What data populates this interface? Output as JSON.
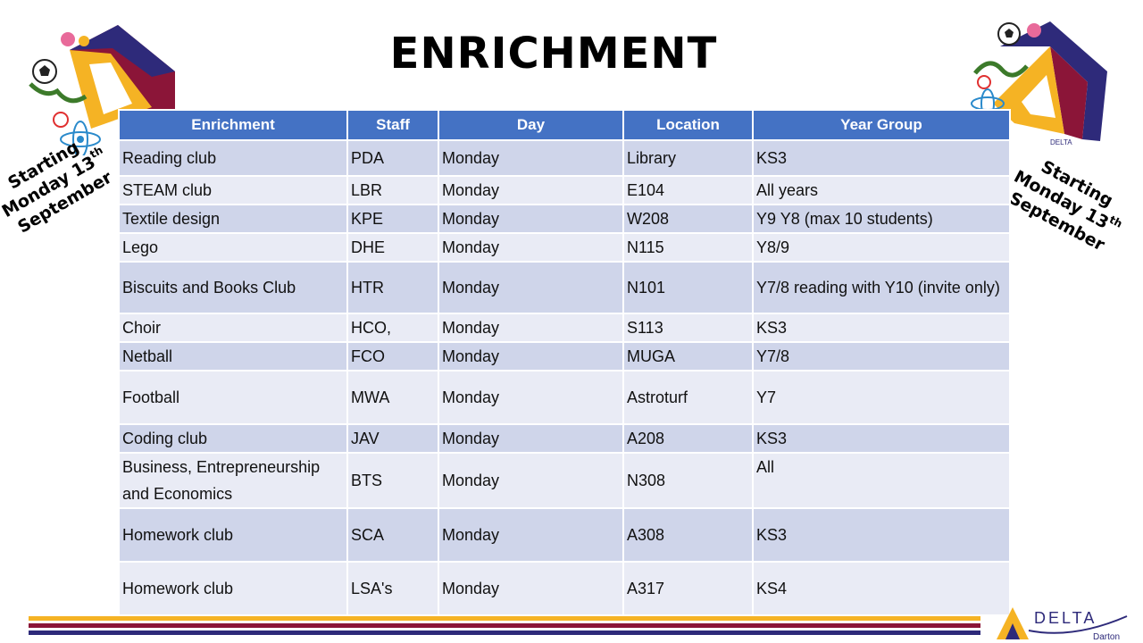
{
  "title": "ENRICHMENT",
  "badge": {
    "line1": "Starting",
    "line2": "Monday 13",
    "sup": "th",
    "line3": "September"
  },
  "table": {
    "headers": [
      "Enrichment",
      "Staff",
      "Day",
      "Location",
      "Year Group"
    ],
    "rows": [
      {
        "activity": "Reading club",
        "staff": "PDA",
        "day": "Monday",
        "location": "Library",
        "year": "KS3"
      },
      {
        "activity": "STEAM club",
        "staff": "LBR",
        "day": "Monday",
        "location": "E104",
        "year": "All years"
      },
      {
        "activity": "Textile design",
        "staff": "KPE",
        "day": "Monday",
        "location": "W208",
        "year": "Y9 Y8 (max 10 students)"
      },
      {
        "activity": "Lego",
        "staff": "DHE",
        "day": "Monday",
        "location": "N115",
        "year": "Y8/9"
      },
      {
        "activity": "Biscuits and Books Club",
        "staff": "HTR",
        "day": "Monday",
        "location": "N101",
        "year": "Y7/8 reading with Y10 (invite only)"
      },
      {
        "activity": "Choir",
        "staff": "HCO,",
        "day": "Monday",
        "location": "S113",
        "year": "KS3"
      },
      {
        "activity": "Netball",
        "staff": "FCO",
        "day": "Monday",
        "location": "MUGA",
        "year": "Y7/8"
      },
      {
        "activity": "Football",
        "staff": "MWA",
        "day": "Monday",
        "location": "Astroturf",
        "year": "Y7"
      },
      {
        "activity": "Coding club",
        "staff": "JAV",
        "day": "Monday",
        "location": "A208",
        "year": "KS3"
      },
      {
        "activity": "Business, Entrepreneurship and Economics",
        "staff": "BTS",
        "day": "Monday",
        "location": "N308",
        "year": "All"
      },
      {
        "activity": "Homework club",
        "staff": "SCA",
        "day": "Monday",
        "location": "A308",
        "year": "KS3"
      },
      {
        "activity": "Homework club",
        "staff": "LSA's",
        "day": "Monday",
        "location": "A317",
        "year": "KS4"
      }
    ]
  },
  "footer": {
    "logo_text": "DELTA",
    "logo_sub": "Darton"
  },
  "colors": {
    "header": "#4472c4",
    "row_odd": "#cfd5ea",
    "row_even": "#e9ebf5",
    "gold": "#f5b324",
    "maroon": "#8b1538",
    "navy": "#2e2a7a"
  }
}
